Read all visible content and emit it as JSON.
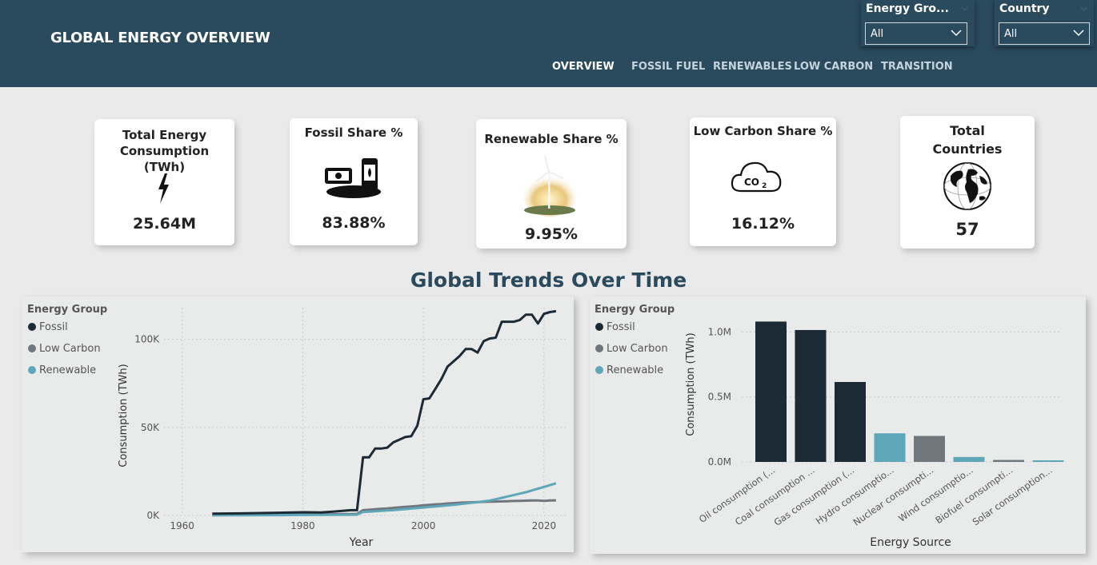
{
  "header": {
    "title": "GLOBAL ENERGY OVERVIEW",
    "nav": [
      "OVERVIEW",
      "FOSSIL FUEL",
      "RENEWABLES",
      "LOW CARBON",
      "TRANSITION"
    ]
  },
  "slicers": {
    "energy_group": {
      "label": "Energy Gro...",
      "value": "All"
    },
    "country": {
      "label": "Country",
      "value": "All"
    }
  },
  "kpis": {
    "total": {
      "title": "Total Energy Consumption (TWh)",
      "value": "25.64M",
      "icon": "lightning-icon"
    },
    "fossil": {
      "title": "Fossil Share %",
      "value": "83.88%",
      "icon": "oil-barrels-icon"
    },
    "renewable": {
      "title": "Renewable Share %",
      "value": "9.95%",
      "icon": "wind-turbine-icon"
    },
    "lowcarbon": {
      "title": "Low Carbon Share %",
      "value": "16.12%",
      "icon": "co2-cloud-icon"
    },
    "countries": {
      "title": "Total Countries",
      "value": "57",
      "icon": "globe-icon"
    }
  },
  "section_title": "Global Trends Over Time",
  "colors": {
    "header": "#2a4a5e",
    "fossil": "#1b2a35",
    "low_carbon": "#6f767c",
    "renewable": "#5ea7b9"
  },
  "chart_data": [
    {
      "type": "line",
      "legend_title": "Energy Group",
      "legend_position": "top-left",
      "xlabel": "Year",
      "ylabel": "Consumption (TWh)",
      "xlim": [
        1957,
        2024
      ],
      "ylim": [
        0,
        118000
      ],
      "x_ticks": [
        1960,
        1980,
        2000,
        2020
      ],
      "y_ticks": [
        0,
        50000,
        100000
      ],
      "y_tick_labels": [
        "0K",
        "50K",
        "100K"
      ],
      "x": [
        1965,
        1970,
        1975,
        1980,
        1983,
        1985,
        1988,
        1989,
        1990,
        1991,
        1992,
        1993,
        1994,
        1995,
        1996,
        1997,
        1998,
        1999,
        2000,
        2001,
        2002,
        2003,
        2004,
        2005,
        2006,
        2007,
        2008,
        2009,
        2010,
        2011,
        2012,
        2013,
        2014,
        2015,
        2016,
        2017,
        2018,
        2019,
        2020,
        2021,
        2022
      ],
      "series": [
        {
          "name": "Fossil",
          "color": "#1b2a35",
          "values": [
            1000,
            1200,
            1500,
            1800,
            1700,
            2200,
            3000,
            3000,
            33000,
            33000,
            38000,
            38000,
            38500,
            41500,
            43000,
            44500,
            45000,
            51000,
            66000,
            66500,
            72000,
            77500,
            84500,
            87500,
            90500,
            94500,
            94500,
            92500,
            99000,
            100500,
            101000,
            110000,
            110000,
            110000,
            111000,
            114000,
            114000,
            109000,
            114500,
            115500,
            116000
          ]
        },
        {
          "name": "Low Carbon",
          "color": "#6f767c",
          "values": [
            200,
            300,
            400,
            500,
            600,
            700,
            800,
            900,
            3000,
            3200,
            3500,
            3800,
            4000,
            4300,
            4600,
            4900,
            5100,
            5400,
            5800,
            6000,
            6300,
            6500,
            6800,
            7000,
            7200,
            7400,
            7500,
            7600,
            7700,
            7800,
            7900,
            8000,
            8100,
            8200,
            8300,
            8400,
            8500,
            8500,
            8300,
            8500,
            8600
          ]
        },
        {
          "name": "Renewable",
          "color": "#5ea7b9",
          "values": [
            100,
            150,
            200,
            250,
            300,
            350,
            400,
            450,
            2000,
            2200,
            2400,
            2600,
            2800,
            3000,
            3300,
            3600,
            3900,
            4200,
            4500,
            4800,
            5100,
            5400,
            5700,
            6000,
            6400,
            6800,
            7200,
            7500,
            8000,
            8500,
            9200,
            10000,
            10800,
            11600,
            12400,
            13200,
            14200,
            15200,
            16200,
            17200,
            18300
          ]
        }
      ]
    },
    {
      "type": "bar",
      "legend_title": "Energy Group",
      "legend_position": "top-left",
      "xlabel": "Energy Source",
      "ylabel": "Consumption (TWh)",
      "ylim": [
        0,
        1150000
      ],
      "y_ticks": [
        0,
        500000,
        1000000
      ],
      "y_tick_labels": [
        "0.0M",
        "0.5M",
        "1.0M"
      ],
      "categories": [
        "Oil consumption (...",
        "Coal consumption ...",
        "Gas consumption (...",
        "Hydro consumptio...",
        "Nuclear consumpti...",
        "Wind consumptio...",
        "Biofuel consumpti...",
        "Solar consumption..."
      ],
      "values": [
        1080000,
        1015000,
        615000,
        220000,
        200000,
        38000,
        15000,
        12000
      ],
      "bar_colors": [
        "#1b2a35",
        "#1b2a35",
        "#1b2a35",
        "#5ea7b9",
        "#6f767c",
        "#5ea7b9",
        "#6f767c",
        "#5ea7b9"
      ],
      "legend": [
        {
          "name": "Fossil",
          "color": "#1b2a35"
        },
        {
          "name": "Low Carbon",
          "color": "#6f767c"
        },
        {
          "name": "Renewable",
          "color": "#5ea7b9"
        }
      ]
    }
  ]
}
